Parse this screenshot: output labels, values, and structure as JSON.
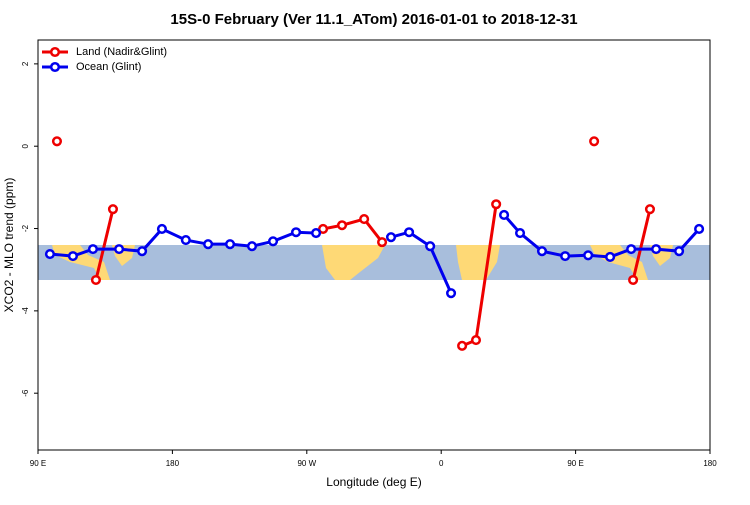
{
  "chart_data": {
    "type": "line",
    "title": "15S-0 February (Ver 11.1_ATom)   2016-01-01 to 2018-12-31",
    "xlabel": "Longitude (deg E)",
    "ylabel": "XCO2 - MLO trend (ppm)",
    "xlim": [
      90,
      540
    ],
    "ylim": [
      -7.38,
      2.58
    ],
    "xticks": [
      {
        "value": 90,
        "label": "90 E"
      },
      {
        "value": 180,
        "label": "180"
      },
      {
        "value": 270,
        "label": "90 W"
      },
      {
        "value": 360,
        "label": "0"
      },
      {
        "value": 450,
        "label": "90 E"
      },
      {
        "value": 540,
        "label": "180"
      }
    ],
    "yticks": [
      2,
      0,
      -2,
      -4,
      -6
    ],
    "legend": "top-left",
    "series": [
      {
        "name": "Land (Nadir&Glint)",
        "color": "#ee0000",
        "x": [
          102.7,
          null,
          128.8,
          140.2,
          null,
          280.9,
          293.6,
          308.4,
          320.4,
          null,
          374,
          383.3,
          396.8,
          null,
          462.4,
          null,
          488.5,
          499.8
        ],
        "values": [
          0.12,
          null,
          -3.25,
          -1.53,
          null,
          -2.01,
          -1.92,
          -1.77,
          -2.33,
          null,
          -4.85,
          -4.71,
          -1.41,
          null,
          0.12,
          null,
          -3.25,
          -1.53
        ]
      },
      {
        "name": "Ocean (Glint)",
        "color": "#0000ee",
        "x": [
          98,
          113.4,
          126.8,
          144.3,
          159.7,
          173,
          189,
          203.9,
          218.6,
          233.3,
          247.4,
          262.8,
          276.2,
          null,
          326.4,
          338.5,
          352.6,
          366.6,
          null,
          402.1,
          412.8,
          427.5,
          443,
          458.4,
          473.1,
          487.2,
          503.9,
          519.3,
          532.7
        ],
        "values": [
          -2.62,
          -2.67,
          -2.5,
          -2.5,
          -2.55,
          -2.01,
          -2.28,
          -2.38,
          -2.38,
          -2.43,
          -2.31,
          -2.09,
          -2.11,
          null,
          -2.21,
          -2.09,
          -2.43,
          -3.57,
          null,
          -1.67,
          -2.11,
          -2.55,
          -2.67,
          -2.65,
          -2.69,
          -2.5,
          -2.5,
          -2.55,
          -2.01
        ]
      }
    ]
  }
}
